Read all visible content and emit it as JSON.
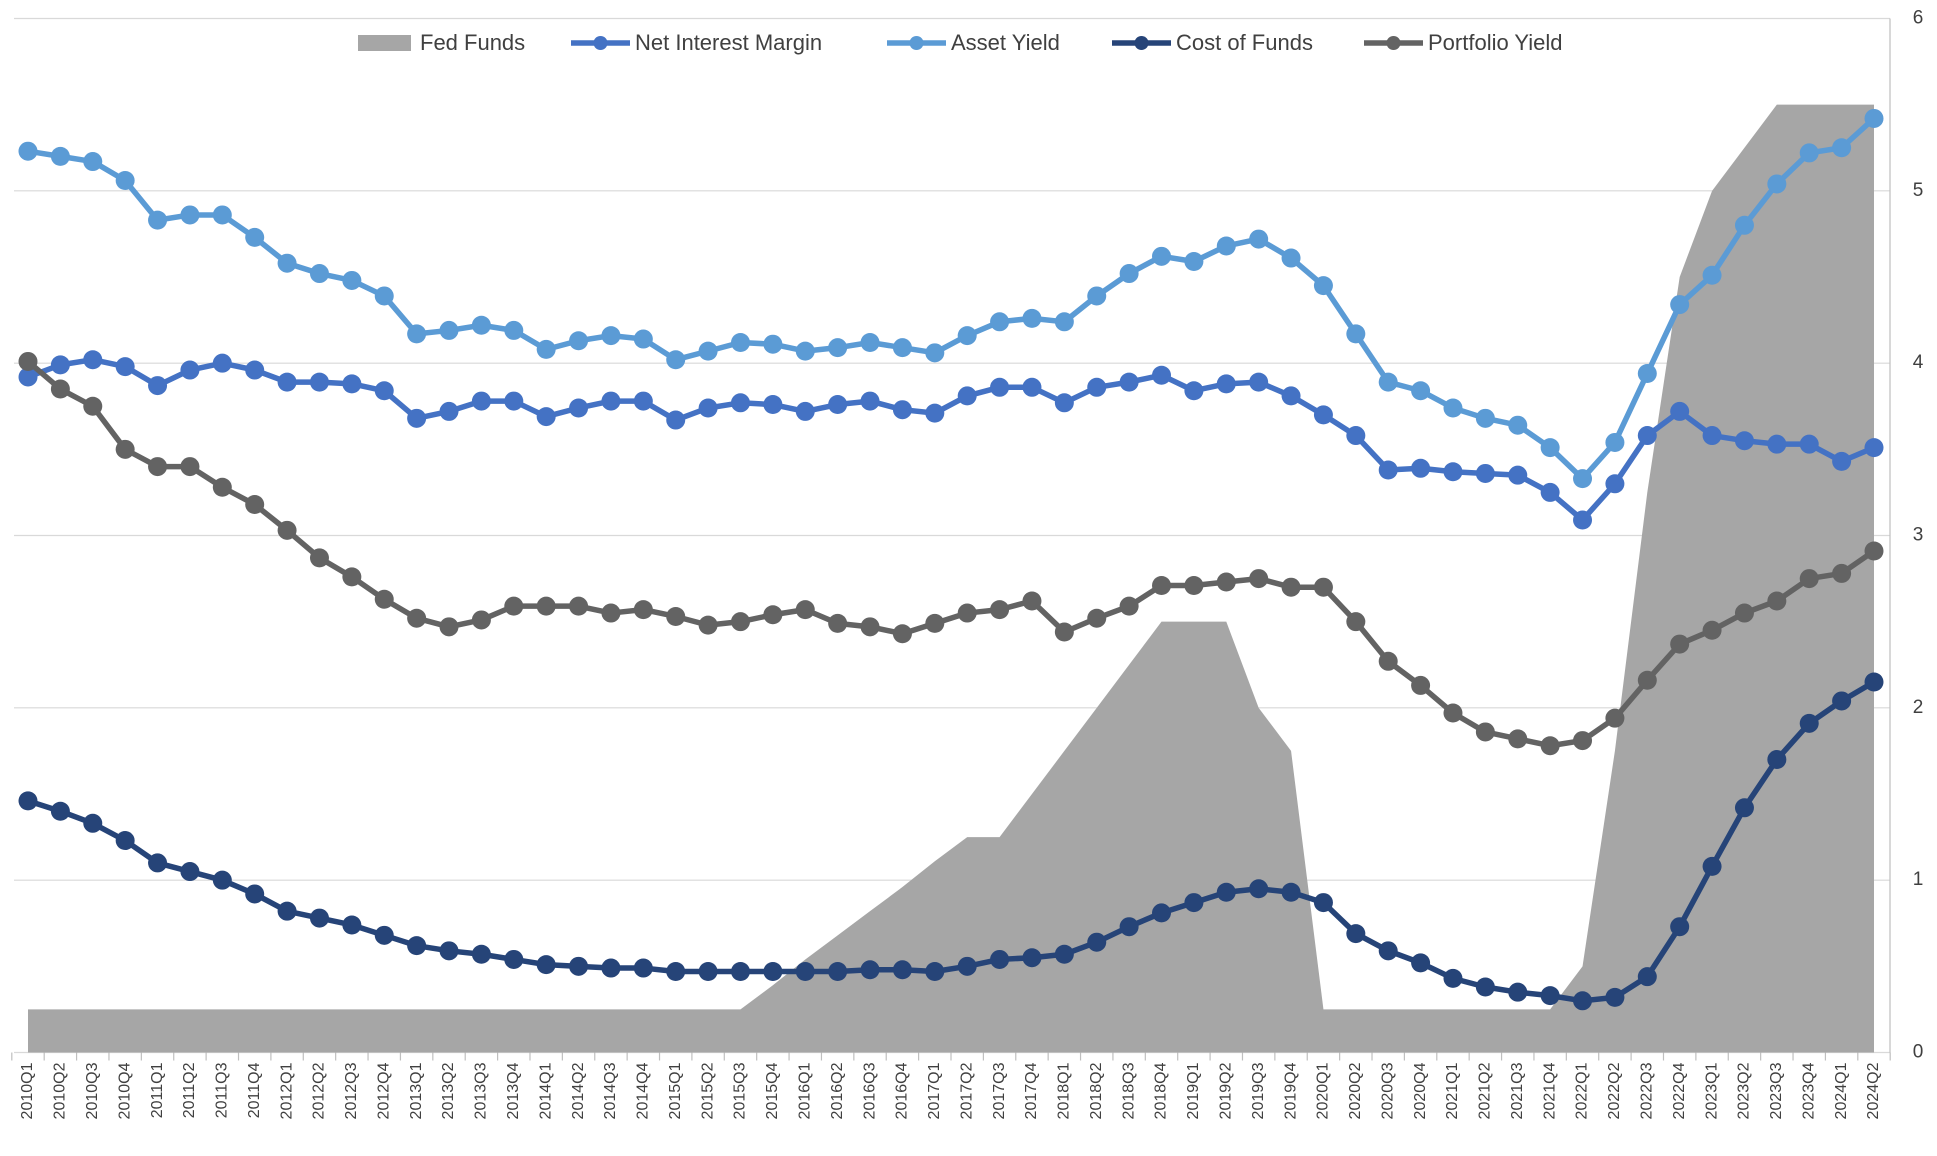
{
  "chart_data": {
    "type": "line",
    "categories": [
      "2010Q1",
      "2010Q2",
      "2010Q3",
      "2010Q4",
      "2011Q1",
      "2011Q2",
      "2011Q3",
      "2011Q4",
      "2012Q1",
      "2012Q2",
      "2012Q3",
      "2012Q4",
      "2013Q1",
      "2013Q2",
      "2013Q3",
      "2013Q4",
      "2014Q1",
      "2014Q2",
      "2014Q3",
      "2014Q4",
      "2015Q1",
      "2015Q2",
      "2015Q3",
      "2015Q4",
      "2016Q1",
      "2016Q2",
      "2016Q3",
      "2016Q4",
      "2017Q1",
      "2017Q2",
      "2017Q3",
      "2017Q4",
      "2018Q1",
      "2018Q2",
      "2018Q3",
      "2018Q4",
      "2019Q1",
      "2019Q2",
      "2019Q3",
      "2019Q4",
      "2020Q1",
      "2020Q2",
      "2020Q3",
      "2020Q4",
      "2021Q1",
      "2021Q2",
      "2021Q3",
      "2021Q4",
      "2022Q1",
      "2022Q2",
      "2022Q3",
      "2022Q4",
      "2023Q1",
      "2023Q2",
      "2023Q3",
      "2023Q4",
      "2024Q1",
      "2024Q2"
    ],
    "series": [
      {
        "name": "Fed Funds",
        "kind": "area",
        "color": "#a6a6a6",
        "values": [
          0.25,
          0.25,
          0.25,
          0.25,
          0.25,
          0.25,
          0.25,
          0.25,
          0.25,
          0.25,
          0.25,
          0.25,
          0.25,
          0.25,
          0.25,
          0.25,
          0.25,
          0.25,
          0.25,
          0.25,
          0.25,
          0.25,
          0.25,
          0.39,
          0.54,
          0.68,
          0.82,
          0.96,
          1.11,
          1.25,
          1.25,
          1.5,
          1.75,
          2.0,
          2.25,
          2.5,
          2.5,
          2.5,
          2.0,
          1.75,
          0.25,
          0.25,
          0.25,
          0.25,
          0.25,
          0.25,
          0.25,
          0.25,
          0.5,
          1.75,
          3.25,
          4.5,
          5.0,
          5.25,
          5.5,
          5.5,
          5.5,
          5.5
        ]
      },
      {
        "name": "Net Interest Margin",
        "color": "#4472c4",
        "values": [
          3.92,
          3.99,
          4.02,
          3.98,
          3.87,
          3.96,
          4.0,
          3.96,
          3.89,
          3.89,
          3.88,
          3.84,
          3.68,
          3.72,
          3.78,
          3.78,
          3.69,
          3.74,
          3.78,
          3.78,
          3.67,
          3.74,
          3.77,
          3.76,
          3.72,
          3.76,
          3.78,
          3.73,
          3.71,
          3.81,
          3.86,
          3.86,
          3.77,
          3.86,
          3.89,
          3.93,
          3.84,
          3.88,
          3.89,
          3.81,
          3.7,
          3.58,
          3.38,
          3.39,
          3.37,
          3.36,
          3.35,
          3.25,
          3.09,
          3.3,
          3.58,
          3.72,
          3.58,
          3.55,
          3.53,
          3.53,
          3.43,
          3.51
        ]
      },
      {
        "name": "Asset Yield",
        "color": "#5b9bd5",
        "values": [
          5.23,
          5.2,
          5.17,
          5.06,
          4.83,
          4.86,
          4.86,
          4.73,
          4.58,
          4.52,
          4.48,
          4.39,
          4.17,
          4.19,
          4.22,
          4.19,
          4.08,
          4.13,
          4.16,
          4.14,
          4.02,
          4.07,
          4.12,
          4.11,
          4.07,
          4.09,
          4.12,
          4.09,
          4.06,
          4.16,
          4.24,
          4.26,
          4.24,
          4.39,
          4.52,
          4.62,
          4.59,
          4.68,
          4.72,
          4.61,
          4.45,
          4.17,
          3.89,
          3.84,
          3.74,
          3.68,
          3.64,
          3.51,
          3.33,
          3.54,
          3.94,
          4.34,
          4.51,
          4.8,
          5.04,
          5.22,
          5.25,
          5.42
        ]
      },
      {
        "name": "Cost of Funds",
        "color": "#264478",
        "values": [
          1.46,
          1.4,
          1.33,
          1.23,
          1.1,
          1.05,
          1.0,
          0.92,
          0.82,
          0.78,
          0.74,
          0.68,
          0.62,
          0.59,
          0.57,
          0.54,
          0.51,
          0.5,
          0.49,
          0.49,
          0.47,
          0.47,
          0.47,
          0.47,
          0.47,
          0.47,
          0.48,
          0.48,
          0.47,
          0.5,
          0.54,
          0.55,
          0.57,
          0.64,
          0.73,
          0.81,
          0.87,
          0.93,
          0.95,
          0.93,
          0.87,
          0.69,
          0.59,
          0.52,
          0.43,
          0.38,
          0.35,
          0.33,
          0.3,
          0.32,
          0.44,
          0.73,
          1.08,
          1.42,
          1.7,
          1.91,
          2.04,
          2.15
        ]
      },
      {
        "name": "Portfolio Yield",
        "color": "#636363",
        "values": [
          4.01,
          3.85,
          3.75,
          3.5,
          3.4,
          3.4,
          3.28,
          3.18,
          3.03,
          2.87,
          2.76,
          2.63,
          2.52,
          2.47,
          2.51,
          2.59,
          2.59,
          2.59,
          2.55,
          2.57,
          2.53,
          2.48,
          2.5,
          2.54,
          2.57,
          2.49,
          2.47,
          2.43,
          2.49,
          2.55,
          2.57,
          2.62,
          2.44,
          2.52,
          2.59,
          2.71,
          2.71,
          2.73,
          2.75,
          2.7,
          2.7,
          2.5,
          2.27,
          2.13,
          1.97,
          1.86,
          1.82,
          1.78,
          1.81,
          1.94,
          2.16,
          2.37,
          2.45,
          2.55,
          2.62,
          2.75,
          2.78,
          2.91
        ]
      }
    ],
    "ylim": [
      0,
      6
    ],
    "yticks": [
      0,
      1,
      2,
      3,
      4,
      5,
      6
    ],
    "grid": true,
    "legend": "top"
  }
}
